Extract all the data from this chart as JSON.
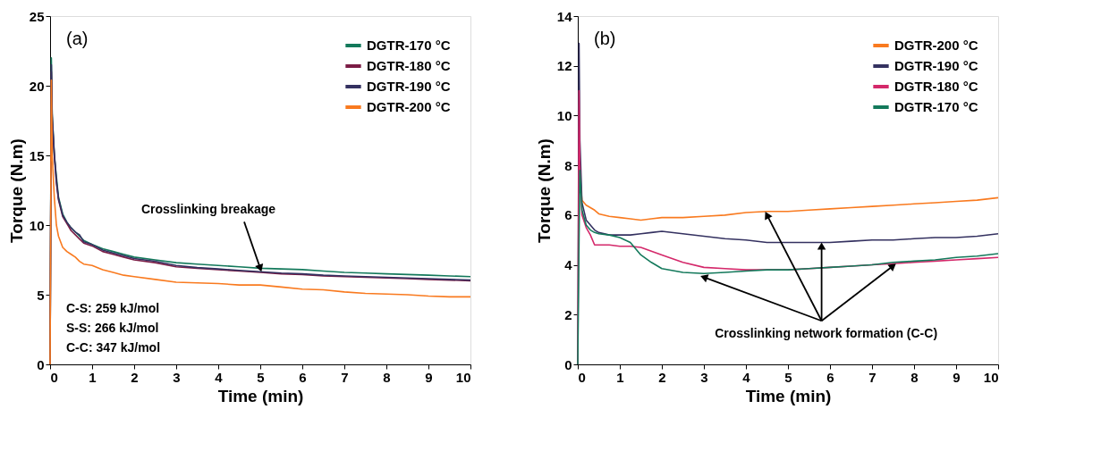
{
  "chart_data": [
    {
      "type": "line",
      "xlabel": "Time (min)",
      "ylabel": "Torque (N.m)",
      "xlim": [
        0,
        10
      ],
      "ylim": [
        0,
        25
      ],
      "xticks": [
        0,
        1,
        2,
        3,
        4,
        5,
        6,
        7,
        8,
        9,
        10
      ],
      "yticks": [
        0,
        5,
        10,
        15,
        20,
        25
      ],
      "legend": "top right",
      "grid": false,
      "line_style": "solid",
      "annotations": [
        "(a)",
        {
          "text": "Crosslinking breakage",
          "x": 5,
          "y": 6.9
        },
        "C-S: 259 kJ/mol",
        "S-S: 266 kJ/mol",
        "C-C: 347 kJ/mol"
      ],
      "x": [
        0,
        0.03,
        0.05,
        0.1,
        0.15,
        0.2,
        0.3,
        0.4,
        0.5,
        0.6,
        0.7,
        0.8,
        1,
        1.25,
        1.5,
        1.75,
        2,
        2.5,
        3,
        3.5,
        4,
        4.5,
        5,
        5.5,
        6,
        6.5,
        7,
        7.5,
        8,
        8.5,
        9,
        9.5,
        10
      ],
      "series": [
        {
          "name": "DGTR-170 °C",
          "color": "#13795b",
          "values": [
            0,
            22,
            18,
            15,
            13.5,
            12,
            10.8,
            10.2,
            9.8,
            9.5,
            9.2,
            8.9,
            8.6,
            8.3,
            8.1,
            7.9,
            7.7,
            7.5,
            7.3,
            7.2,
            7.1,
            7.0,
            6.9,
            6.85,
            6.8,
            6.7,
            6.6,
            6.55,
            6.5,
            6.45,
            6.4,
            6.35,
            6.3
          ]
        },
        {
          "name": "DGTR-180 °C",
          "color": "#7b1c45",
          "values": [
            0,
            21,
            17.5,
            15,
            13,
            11.8,
            10.6,
            10.1,
            9.6,
            9.3,
            9.0,
            8.7,
            8.5,
            8.1,
            7.9,
            7.7,
            7.5,
            7.3,
            7.0,
            6.9,
            6.8,
            6.7,
            6.6,
            6.5,
            6.45,
            6.35,
            6.3,
            6.25,
            6.2,
            6.15,
            6.1,
            6.05,
            6.0
          ]
        },
        {
          "name": "DGTR-190 °C",
          "color": "#343160",
          "values": [
            0,
            21.5,
            17.8,
            15.2,
            13.2,
            11.9,
            10.7,
            10.2,
            9.8,
            9.5,
            9.3,
            8.8,
            8.6,
            8.2,
            8.0,
            7.8,
            7.6,
            7.4,
            7.1,
            6.95,
            6.85,
            6.75,
            6.65,
            6.55,
            6.5,
            6.4,
            6.35,
            6.3,
            6.25,
            6.2,
            6.15,
            6.1,
            6.05
          ]
        },
        {
          "name": "DGTR-200 °C",
          "color": "#f97a1f",
          "values": [
            0,
            20.4,
            15,
            12,
            10,
            9.2,
            8.4,
            8.1,
            7.9,
            7.7,
            7.4,
            7.2,
            7.1,
            6.8,
            6.6,
            6.4,
            6.3,
            6.1,
            5.9,
            5.85,
            5.8,
            5.7,
            5.7,
            5.55,
            5.4,
            5.35,
            5.2,
            5.1,
            5.05,
            5.0,
            4.9,
            4.85,
            4.85
          ]
        }
      ]
    },
    {
      "type": "line",
      "xlabel": "Time (min)",
      "ylabel": "Torque (N.m)",
      "xlim": [
        0,
        10
      ],
      "ylim": [
        0,
        14
      ],
      "xticks": [
        0,
        1,
        2,
        3,
        4,
        5,
        6,
        7,
        8,
        9,
        10
      ],
      "yticks": [
        0,
        2,
        4,
        6,
        8,
        10,
        12,
        14
      ],
      "legend": "top right",
      "grid": false,
      "line_style": "solid",
      "annotations": [
        "(b)",
        {
          "text": "Crosslinking network formation (C-C)",
          "x": 5.8,
          "y": 4.9
        }
      ],
      "x": [
        0,
        0.03,
        0.05,
        0.1,
        0.2,
        0.3,
        0.4,
        0.5,
        0.75,
        1,
        1.25,
        1.5,
        1.75,
        2,
        2.5,
        3,
        3.5,
        4,
        4.5,
        5,
        5.5,
        6,
        6.5,
        7,
        7.5,
        8,
        8.5,
        9,
        9.5,
        10
      ],
      "series": [
        {
          "name": "DGTR-200 °C",
          "color": "#f97a1f",
          "values": [
            null,
            null,
            7.5,
            6.6,
            6.4,
            6.3,
            6.2,
            6.05,
            5.95,
            5.9,
            5.85,
            5.8,
            5.85,
            5.9,
            5.9,
            5.95,
            6.0,
            6.1,
            6.15,
            6.15,
            6.2,
            6.25,
            6.3,
            6.35,
            6.4,
            6.45,
            6.5,
            6.55,
            6.6,
            6.7
          ]
        },
        {
          "name": "DGTR-190 °C",
          "color": "#343160",
          "values": [
            0,
            12.9,
            9,
            6.5,
            5.8,
            5.6,
            5.4,
            5.3,
            5.2,
            5.2,
            5.2,
            5.25,
            5.3,
            5.35,
            5.25,
            5.15,
            5.05,
            5.0,
            4.9,
            4.9,
            4.9,
            4.9,
            4.95,
            5.0,
            5.0,
            5.05,
            5.1,
            5.1,
            5.15,
            5.25
          ]
        },
        {
          "name": "DGTR-180 °C",
          "color": "#d4286a",
          "values": [
            0,
            11,
            8,
            6,
            5.5,
            5.2,
            4.8,
            4.8,
            4.8,
            4.75,
            4.75,
            4.7,
            4.55,
            4.4,
            4.1,
            3.9,
            3.85,
            3.8,
            3.8,
            3.8,
            3.85,
            3.9,
            3.95,
            4.0,
            4.05,
            4.1,
            4.15,
            4.2,
            4.25,
            4.3
          ]
        },
        {
          "name": "DGTR-170 °C",
          "color": "#13795b",
          "values": [
            0,
            5,
            7.8,
            6.2,
            5.6,
            5.4,
            5.3,
            5.25,
            5.2,
            5.1,
            4.9,
            4.4,
            4.1,
            3.85,
            3.7,
            3.65,
            3.7,
            3.75,
            3.8,
            3.8,
            3.85,
            3.9,
            3.95,
            4.0,
            4.1,
            4.15,
            4.2,
            4.3,
            4.35,
            4.45
          ]
        }
      ]
    }
  ]
}
